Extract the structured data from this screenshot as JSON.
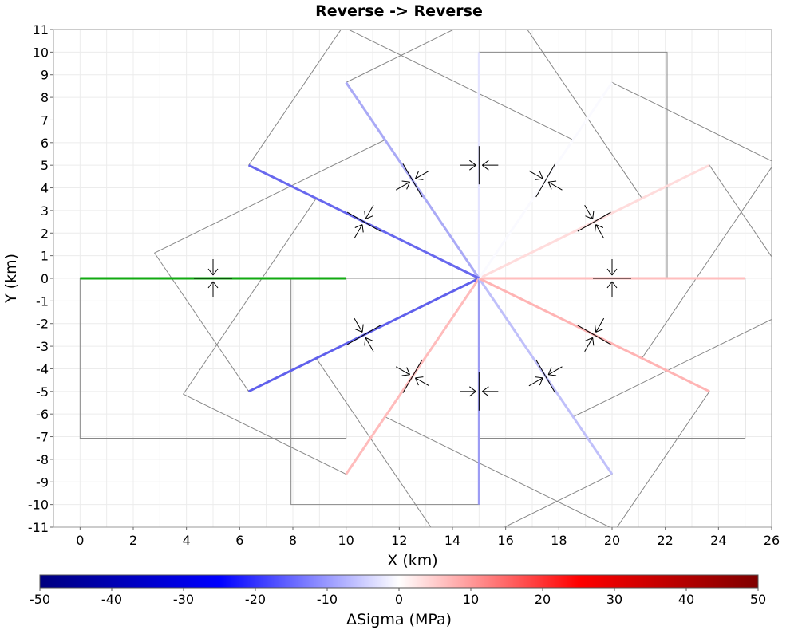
{
  "chart_data": {
    "type": "line",
    "title": "Reverse -> Reverse",
    "xlabel": "X (km)",
    "ylabel": "Y (km)",
    "xlim": [
      -1,
      26
    ],
    "ylim": [
      -11,
      11
    ],
    "xticks": [
      "0",
      "2",
      "4",
      "6",
      "8",
      "10",
      "12",
      "14",
      "16",
      "18",
      "20",
      "22",
      "24",
      "26"
    ],
    "yticks": [
      "11",
      "10",
      "9",
      "8",
      "7",
      "6",
      "5",
      "4",
      "3",
      "2",
      "1",
      "0",
      "-1",
      "-2",
      "-3",
      "-4",
      "-5",
      "-6",
      "-7",
      "-8",
      "-9",
      "-10",
      "-11"
    ],
    "grid": true,
    "source_fault": {
      "x": [
        0,
        10
      ],
      "y": [
        0,
        0
      ],
      "color": "#11aa11",
      "outline": [
        [
          0,
          0
        ],
        [
          10,
          0
        ],
        [
          10,
          -7.07
        ],
        [
          0,
          -7.07
        ]
      ],
      "midpoint": [
        5,
        0
      ]
    },
    "receiver_faults": [
      {
        "angle": 0,
        "end": [
          25,
          0
        ],
        "delta_sigma": 3.2,
        "color": "#ffbebe",
        "outline": [
          [
            15,
            0
          ],
          [
            25,
            0
          ],
          [
            25,
            -7.07
          ],
          [
            15,
            -7.07
          ]
        ],
        "midpoint": [
          20,
          0
        ]
      },
      {
        "angle": 30,
        "end": [
          23.66,
          5
        ],
        "delta_sigma": 1.8,
        "color": "#ffdcdc",
        "outline": [
          [
            15,
            0
          ],
          [
            23.66,
            5
          ],
          [
            27.2,
            -1.12
          ],
          [
            18.54,
            -6.12
          ]
        ],
        "midpoint": [
          19.33,
          2.5
        ]
      },
      {
        "angle": 60,
        "end": [
          20,
          8.66
        ],
        "delta_sigma": 0.2,
        "color": "#fafaff",
        "outline": [
          [
            15,
            0
          ],
          [
            20,
            8.66
          ],
          [
            26.12,
            5.12
          ],
          [
            21.12,
            -3.54
          ]
        ],
        "midpoint": [
          17.5,
          4.33
        ]
      },
      {
        "angle": 90,
        "end": [
          15,
          10
        ],
        "delta_sigma": -1.5,
        "color": "#e4e4ff",
        "outline": [
          [
            15,
            0
          ],
          [
            15,
            10
          ],
          [
            22.07,
            10
          ],
          [
            22.07,
            0
          ]
        ],
        "midpoint": [
          15,
          5
        ]
      },
      {
        "angle": 120,
        "end": [
          10,
          8.66
        ],
        "delta_sigma": -5.0,
        "color": "#aaaaf6",
        "outline": [
          [
            15,
            0
          ],
          [
            10,
            8.66
          ],
          [
            16.12,
            12.2
          ],
          [
            21.12,
            3.54
          ]
        ],
        "midpoint": [
          12.5,
          4.33
        ]
      },
      {
        "angle": 150,
        "end": [
          6.34,
          5
        ],
        "delta_sigma": -10.5,
        "color": "#6868ee",
        "outline": [
          [
            15,
            0
          ],
          [
            6.34,
            5
          ],
          [
            9.88,
            11.12
          ],
          [
            18.54,
            6.12
          ]
        ],
        "midpoint": [
          10.67,
          2.5
        ]
      },
      {
        "angle": 210,
        "end": [
          6.34,
          -5
        ],
        "delta_sigma": -11.0,
        "color": "#6060ec",
        "outline": [
          [
            15,
            0
          ],
          [
            6.34,
            -5
          ],
          [
            2.8,
            1.12
          ],
          [
            11.46,
            6.12
          ]
        ],
        "midpoint": [
          10.67,
          -2.5
        ]
      },
      {
        "angle": 240,
        "end": [
          10,
          -8.66
        ],
        "delta_sigma": 3.0,
        "color": "#ffbcbc",
        "outline": [
          [
            15,
            0
          ],
          [
            10,
            -8.66
          ],
          [
            3.88,
            -5.12
          ],
          [
            8.88,
            3.54
          ]
        ],
        "midpoint": [
          12.5,
          -4.33
        ]
      },
      {
        "angle": 270,
        "end": [
          15,
          -10
        ],
        "delta_sigma": -6.5,
        "color": "#9c9cf4",
        "outline": [
          [
            15,
            0
          ],
          [
            15,
            -10
          ],
          [
            7.93,
            -10
          ],
          [
            7.93,
            0
          ]
        ],
        "midpoint": [
          15,
          -5
        ]
      },
      {
        "angle": 300,
        "end": [
          20,
          -8.66
        ],
        "delta_sigma": -4.0,
        "color": "#c0c0fa",
        "outline": [
          [
            15,
            0
          ],
          [
            20,
            -8.66
          ],
          [
            13.88,
            -12.2
          ],
          [
            8.88,
            -3.54
          ]
        ],
        "midpoint": [
          17.5,
          -4.33
        ]
      },
      {
        "angle": 330,
        "end": [
          23.66,
          -5
        ],
        "delta_sigma": 3.8,
        "color": "#ffb4b4",
        "outline": [
          [
            15,
            0
          ],
          [
            23.66,
            -5
          ],
          [
            20.12,
            -11.12
          ],
          [
            11.46,
            -6.12
          ]
        ],
        "midpoint": [
          19.33,
          -2.5
        ]
      }
    ],
    "colorbar": {
      "label": "ΔSigma (MPa)",
      "min": -50,
      "max": 50,
      "ticks": [
        "-50",
        "-40",
        "-30",
        "-20",
        "-10",
        "0",
        "10",
        "20",
        "30",
        "40",
        "50"
      ],
      "stops": [
        "#00007f",
        "#0000ff",
        "#ffffff",
        "#ff0000",
        "#7f0000"
      ]
    }
  }
}
